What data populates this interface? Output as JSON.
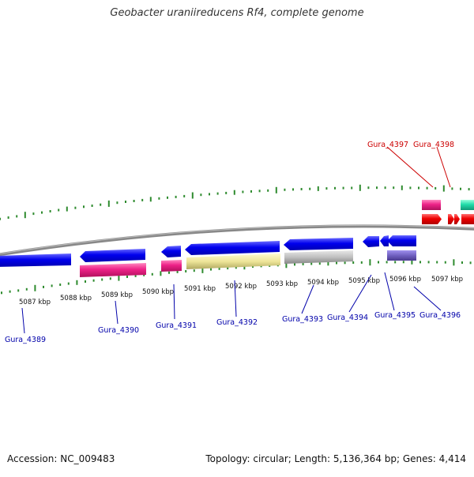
{
  "title": "Geobacter uraniireducens Rf4, complete genome",
  "accession_label": "Accession: NC_009483",
  "summary_label": "Topology: circular; Length: 5,136,364 bp; Genes: 4,414",
  "kbp_labels": [
    "5087 kbp",
    "5088 kbp",
    "5089 kbp",
    "5090 kbp",
    "5091 kbp",
    "5092 kbp",
    "5093 kbp",
    "5094 kbp",
    "5095 kbp",
    "5096 kbp",
    "5097 kbp"
  ],
  "outer_genes": [
    {
      "name": "Gura_4397",
      "color": "#cc0000"
    },
    {
      "name": "Gura_4398",
      "color": "#cc0000"
    }
  ],
  "inner_genes": [
    {
      "name": "Gura_4389",
      "color": "#0000aa"
    },
    {
      "name": "Gura_4390",
      "color": "#0000aa"
    },
    {
      "name": "Gura_4391",
      "color": "#0000aa"
    },
    {
      "name": "Gura_4392",
      "color": "#0000aa"
    },
    {
      "name": "Gura_4393",
      "color": "#0000aa"
    },
    {
      "name": "Gura_4394",
      "color": "#0000aa"
    },
    {
      "name": "Gura_4395",
      "color": "#0000aa"
    },
    {
      "name": "Gura_4396",
      "color": "#0000aa"
    }
  ],
  "colors": {
    "cds_blue": "#0000ee",
    "rna_magenta": "#ee2288",
    "cds_red": "#ee0000",
    "teal": "#22ddaa",
    "yellow": "#eee599",
    "gray_feature": "#c0c0c0",
    "purple": "#7060c0",
    "backbone": "#888888",
    "tick_green": "#2e8b2e"
  }
}
